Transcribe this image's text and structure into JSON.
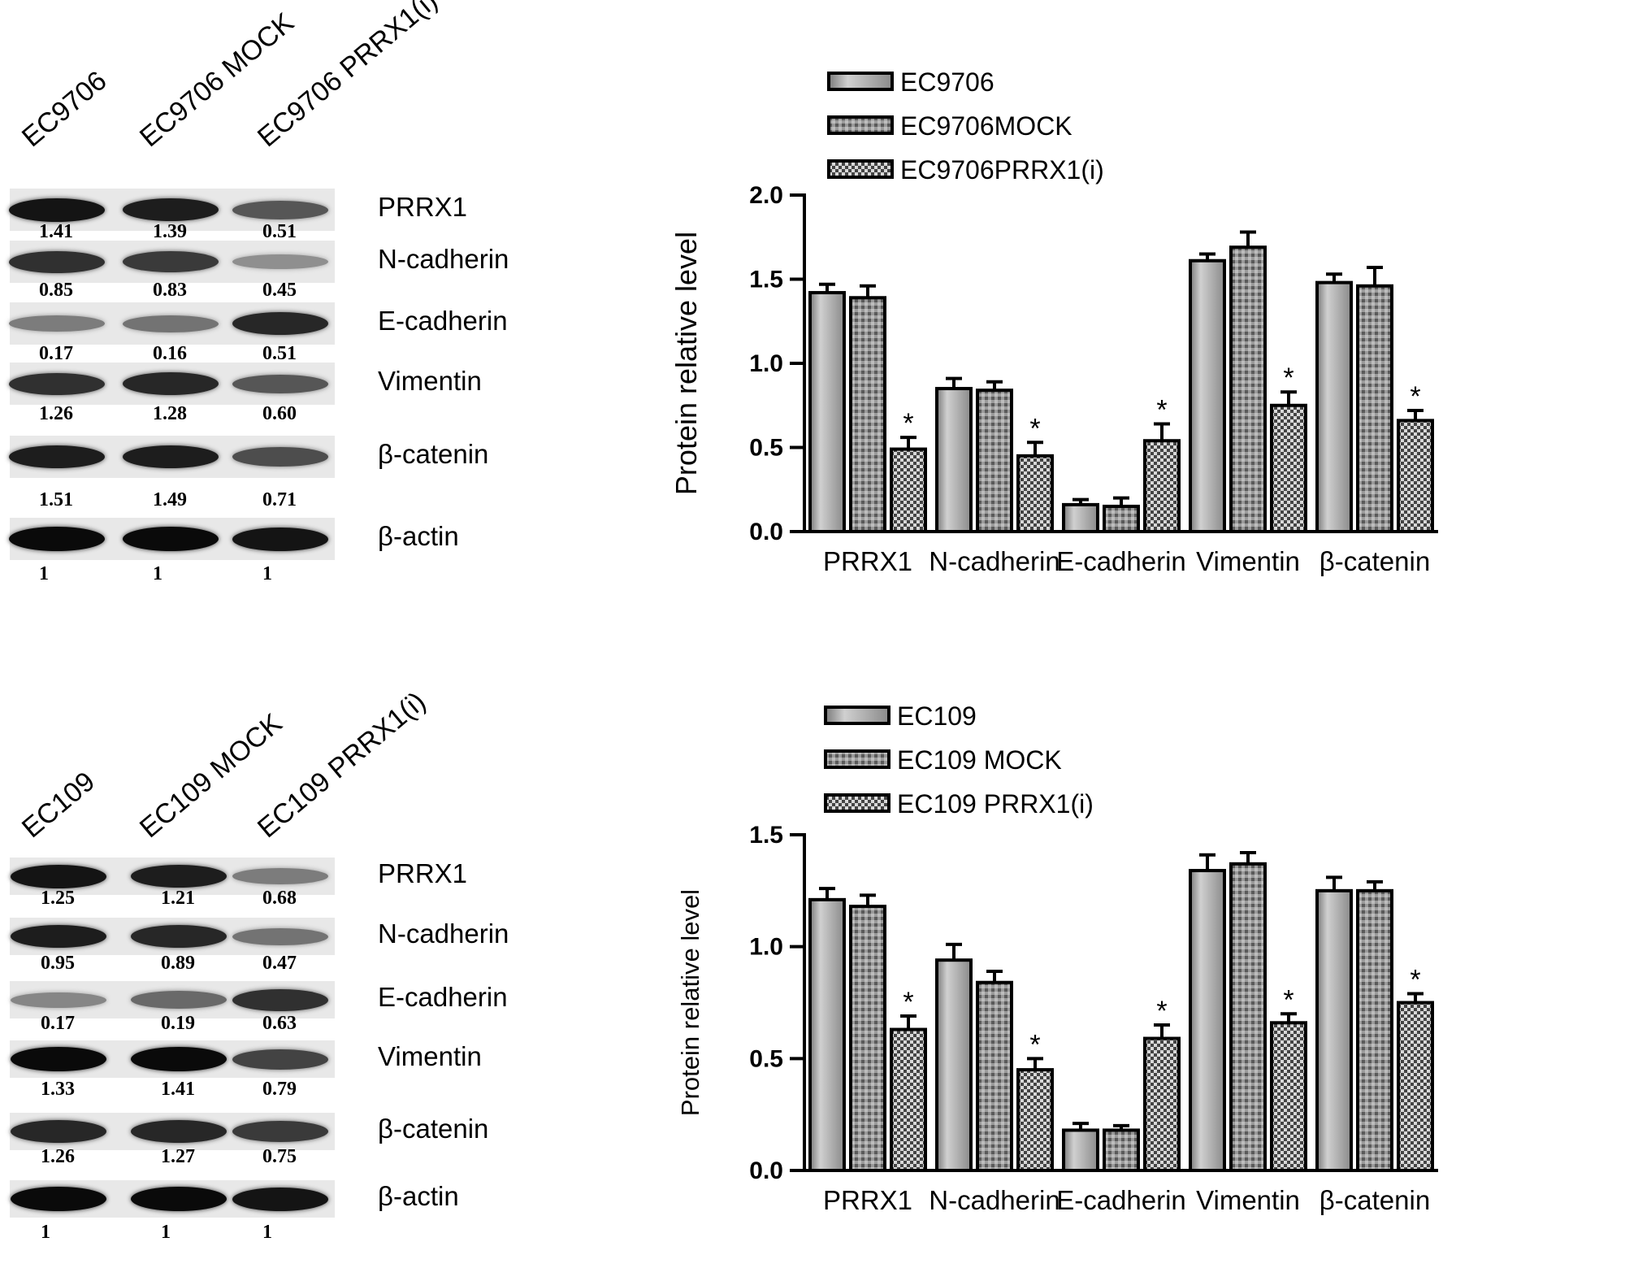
{
  "blots": [
    {
      "lanes": [
        "EC9706",
        "EC9706 MOCK",
        "EC9706 PRRX1(i)"
      ],
      "rows": [
        {
          "protein": "PRRX1",
          "values": [
            "1.41",
            "1.39",
            "0.51"
          ],
          "intensity": [
            0.95,
            0.9,
            0.6
          ]
        },
        {
          "protein": "N-cadherin",
          "values": [
            "0.85",
            "0.83",
            "0.45"
          ],
          "intensity": [
            0.8,
            0.75,
            0.3
          ]
        },
        {
          "protein": "E-cadherin",
          "values": [
            "0.17",
            "0.16",
            "0.51"
          ],
          "intensity": [
            0.4,
            0.45,
            0.85
          ]
        },
        {
          "protein": "Vimentin",
          "values": [
            "1.26",
            "1.28",
            "0.60"
          ],
          "intensity": [
            0.8,
            0.85,
            0.6
          ]
        },
        {
          "protein": "β-catenin",
          "values": [
            "1.51",
            "1.49",
            "0.71"
          ],
          "intensity": [
            0.9,
            0.9,
            0.65
          ]
        },
        {
          "protein": "β-actin",
          "values": [
            "1",
            "1",
            "1"
          ],
          "intensity": [
            1.0,
            1.0,
            0.95
          ]
        }
      ]
    },
    {
      "lanes": [
        "EC109",
        "EC109 MOCK",
        "EC109 PRRX1(i)"
      ],
      "rows": [
        {
          "protein": "PRRX1",
          "values": [
            "1.25",
            "1.21",
            "0.68"
          ],
          "intensity": [
            0.95,
            0.9,
            0.4
          ]
        },
        {
          "protein": "N-cadherin",
          "values": [
            "0.95",
            "0.89",
            "0.47"
          ],
          "intensity": [
            0.9,
            0.85,
            0.45
          ]
        },
        {
          "protein": "E-cadherin",
          "values": [
            "0.17",
            "0.19",
            "0.63"
          ],
          "intensity": [
            0.35,
            0.5,
            0.8
          ]
        },
        {
          "protein": "Vimentin",
          "values": [
            "1.33",
            "1.41",
            "0.79"
          ],
          "intensity": [
            1.0,
            1.0,
            0.7
          ]
        },
        {
          "protein": "β-catenin",
          "values": [
            "1.26",
            "1.27",
            "0.75"
          ],
          "intensity": [
            0.85,
            0.85,
            0.75
          ]
        },
        {
          "protein": "β-actin",
          "values": [
            "1",
            "1",
            "1"
          ],
          "intensity": [
            1.0,
            1.0,
            0.95
          ]
        }
      ]
    }
  ],
  "chart_data": [
    {
      "type": "bar",
      "categories": [
        "PRRX1",
        "N-cadherin",
        "E-cadherin",
        "Vimentin",
        "β-catenin"
      ],
      "series": [
        {
          "name": "EC9706",
          "values": [
            1.42,
            0.85,
            0.16,
            1.61,
            1.48
          ],
          "errors": [
            0.05,
            0.06,
            0.03,
            0.04,
            0.05
          ],
          "pattern": "solid"
        },
        {
          "name": "EC9706MOCK",
          "values": [
            1.39,
            0.84,
            0.15,
            1.69,
            1.46
          ],
          "errors": [
            0.07,
            0.05,
            0.05,
            0.09,
            0.11
          ],
          "pattern": "hatch"
        },
        {
          "name": "EC9706PRRX1(i)",
          "values": [
            0.49,
            0.45,
            0.54,
            0.75,
            0.66
          ],
          "errors": [
            0.07,
            0.08,
            0.1,
            0.08,
            0.06
          ],
          "pattern": "checker"
        }
      ],
      "significance": [
        "*",
        "*",
        "*",
        "*",
        "*"
      ],
      "ylabel": "Protein relative level",
      "ylim": [
        0,
        2.0
      ],
      "yticks": [
        "0.0",
        "0.5",
        "1.0",
        "1.5",
        "2.0"
      ],
      "legend": "top-left",
      "grid": false
    },
    {
      "type": "bar",
      "categories": [
        "PRRX1",
        "N-cadherin",
        "E-cadherin",
        "Vimentin",
        "β-catenin"
      ],
      "series": [
        {
          "name": "EC109",
          "values": [
            1.21,
            0.94,
            0.18,
            1.34,
            1.25
          ],
          "errors": [
            0.05,
            0.07,
            0.03,
            0.07,
            0.06
          ],
          "pattern": "solid"
        },
        {
          "name": "EC109 MOCK",
          "values": [
            1.18,
            0.84,
            0.18,
            1.37,
            1.25
          ],
          "errors": [
            0.05,
            0.05,
            0.02,
            0.05,
            0.04
          ],
          "pattern": "hatch"
        },
        {
          "name": "EC109 PRRX1(i)",
          "values": [
            0.63,
            0.45,
            0.59,
            0.66,
            0.75
          ],
          "errors": [
            0.06,
            0.05,
            0.06,
            0.04,
            0.04
          ],
          "pattern": "checker"
        }
      ],
      "significance": [
        "*",
        "*",
        "*",
        "*",
        "*"
      ],
      "ylabel": "Protein relative level",
      "ylim": [
        0,
        1.5
      ],
      "yticks": [
        "0.0",
        "0.5",
        "1.0",
        "1.5"
      ],
      "legend": "top-left",
      "grid": false
    }
  ]
}
